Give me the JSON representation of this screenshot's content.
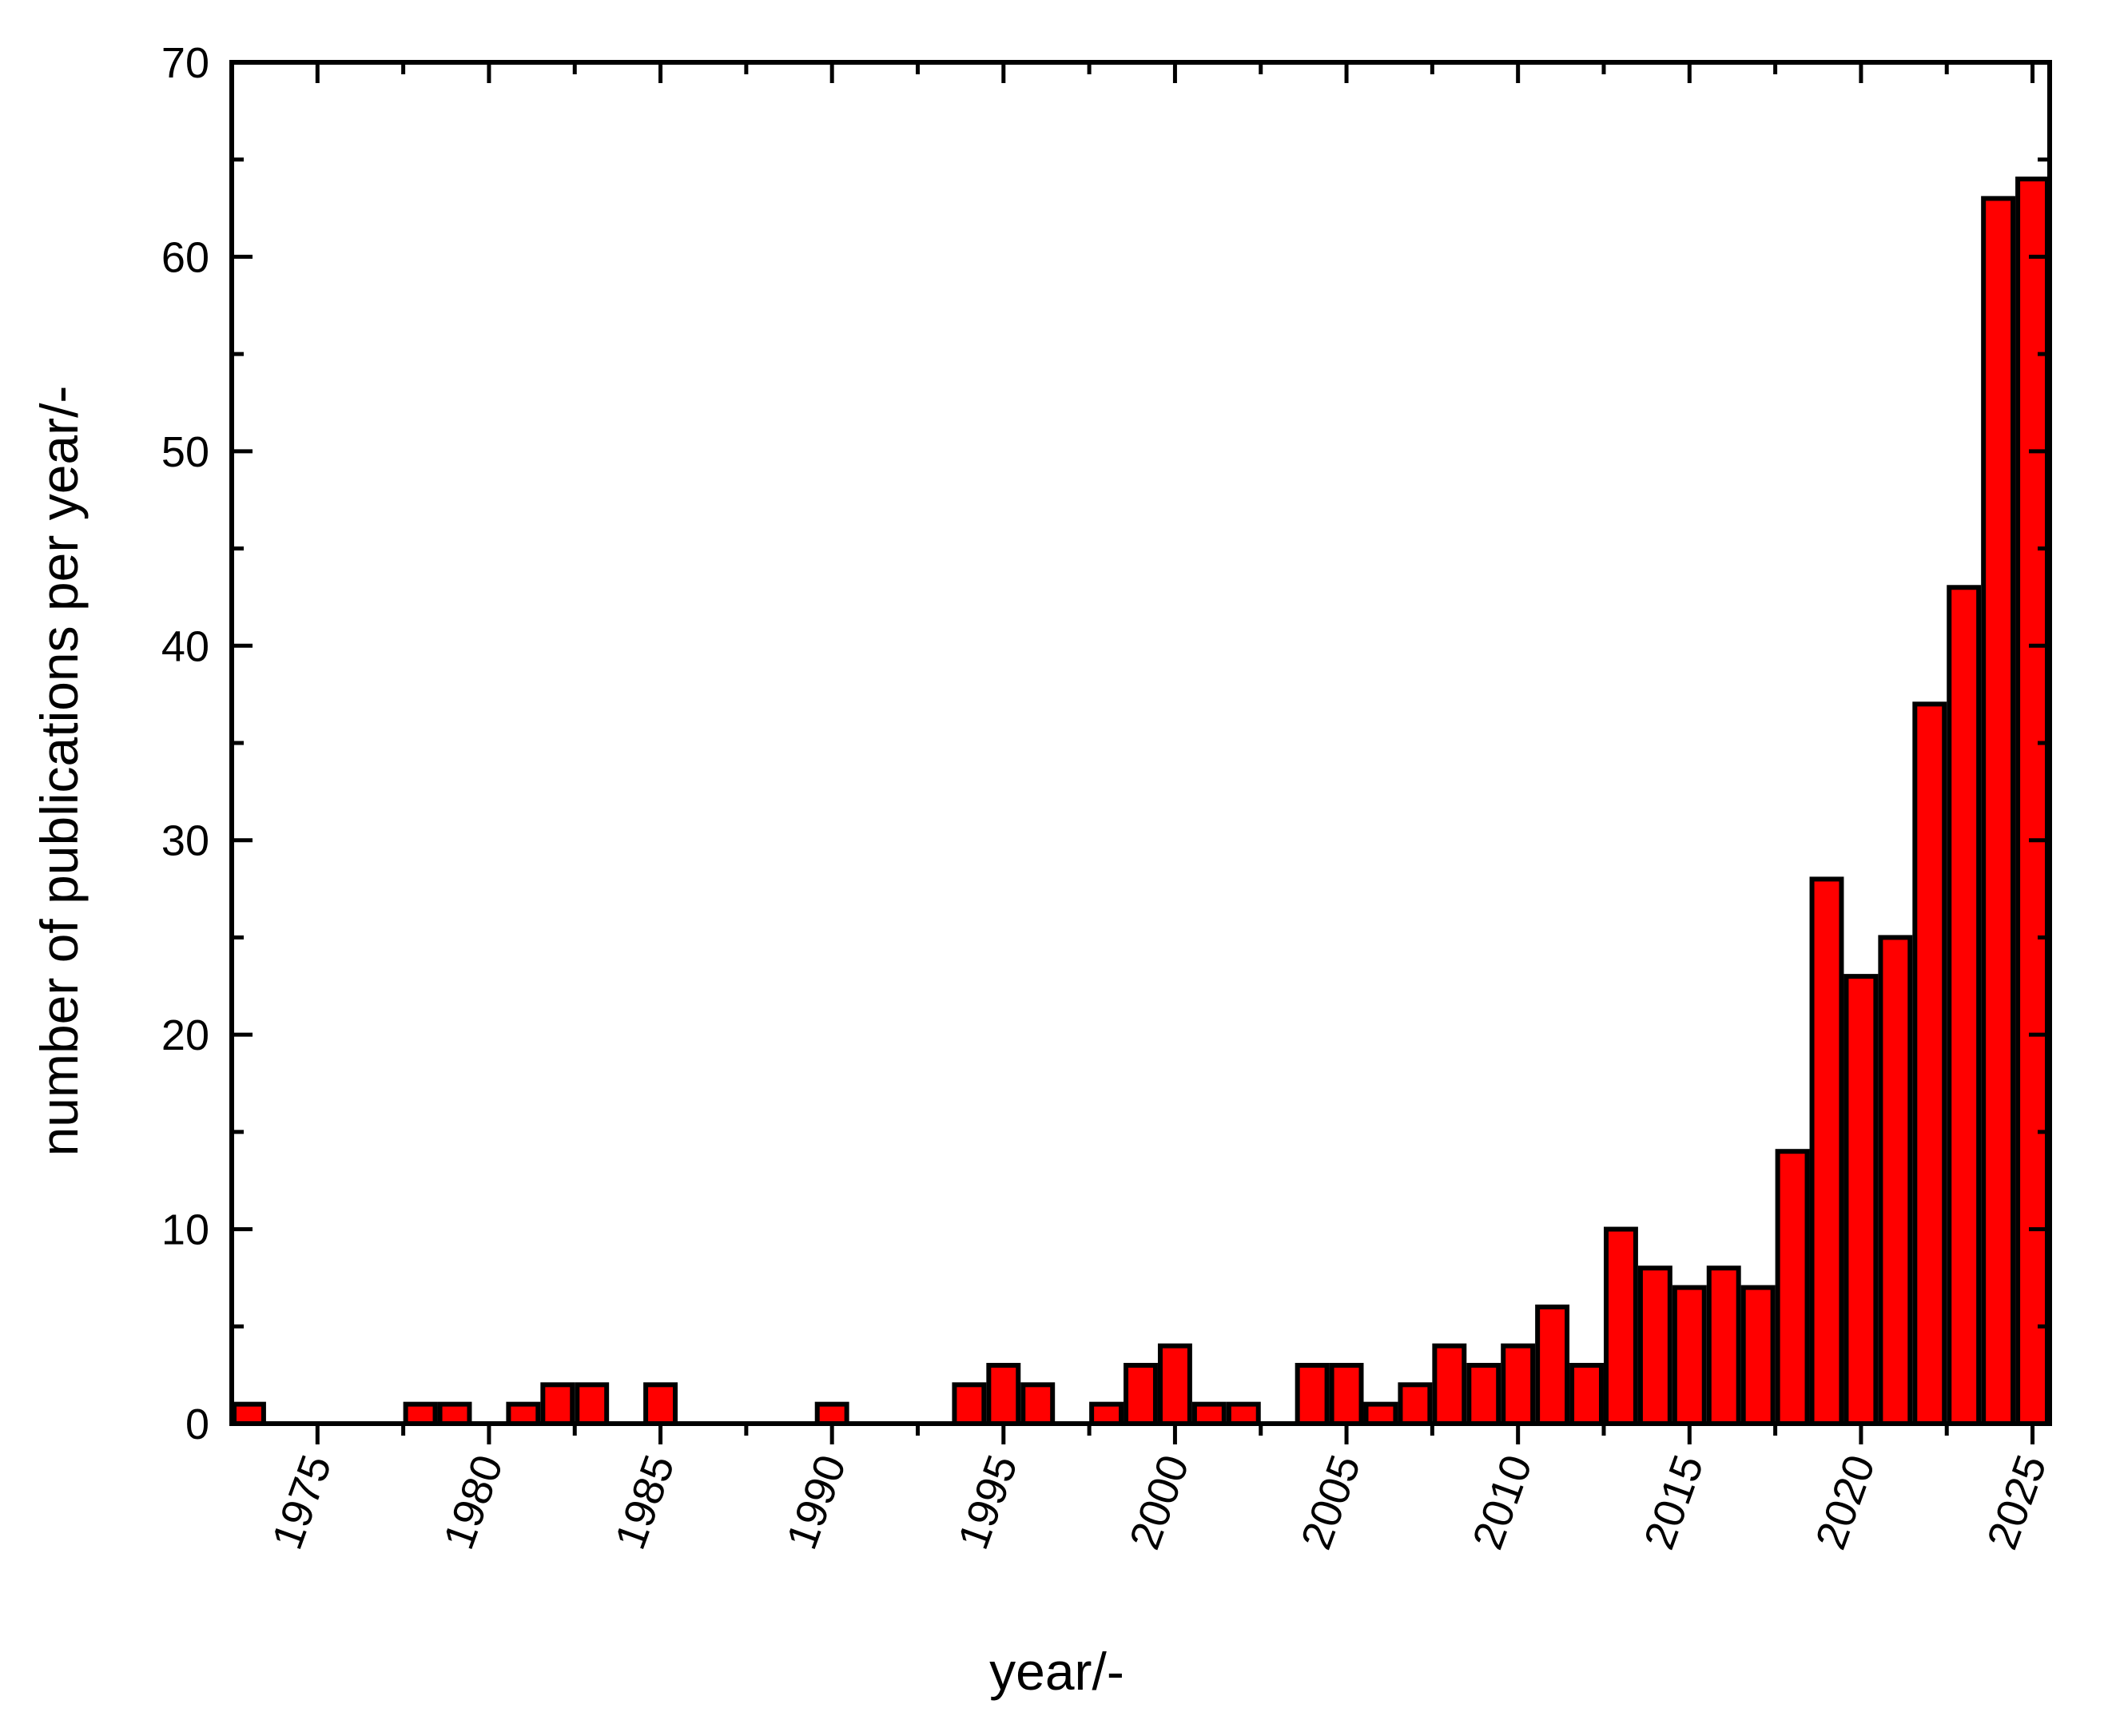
{
  "chart_data": {
    "type": "bar",
    "xlabel": "year/-",
    "ylabel": "number of publications per year/-",
    "xlim": [
      1972.5,
      2025.5
    ],
    "ylim": [
      0,
      70
    ],
    "x_ticks": [
      1975,
      1980,
      1985,
      1990,
      1995,
      2000,
      2005,
      2010,
      2015,
      2020,
      2025
    ],
    "x_tick_labels": [
      "1975",
      "1980",
      "1985",
      "1990",
      "1995",
      "2000",
      "2005",
      "2010",
      "2015",
      "2020",
      "2025"
    ],
    "y_ticks": [
      0,
      10,
      20,
      30,
      40,
      50,
      60,
      70
    ],
    "y_tick_labels": [
      "0",
      "10",
      "20",
      "30",
      "40",
      "50",
      "60",
      "70"
    ],
    "grid": false,
    "legend": "none",
    "bar_color": "#ff0000",
    "edge_color": "#000000",
    "x": [
      1973,
      1978,
      1979,
      1981,
      1982,
      1983,
      1985,
      1990,
      1994,
      1995,
      1996,
      1998,
      1999,
      2000,
      2001,
      2002,
      2004,
      2005,
      2006,
      2007,
      2008,
      2009,
      2010,
      2011,
      2012,
      2013,
      2014,
      2015,
      2016,
      2017,
      2018,
      2019,
      2020,
      2021,
      2022,
      2023,
      2024,
      2025
    ],
    "values": [
      1,
      1,
      1,
      1,
      2,
      2,
      2,
      1,
      2,
      3,
      2,
      1,
      3,
      4,
      1,
      1,
      3,
      3,
      1,
      2,
      4,
      3,
      4,
      6,
      3,
      10,
      8,
      7,
      8,
      7,
      14,
      28,
      23,
      25,
      37,
      43,
      63,
      64
    ]
  }
}
